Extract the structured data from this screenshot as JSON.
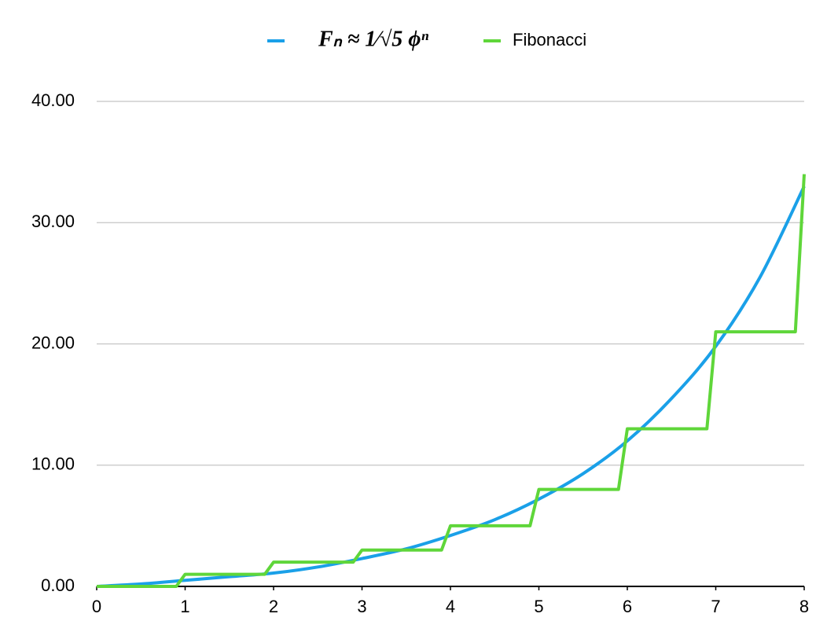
{
  "chart_data": {
    "type": "line",
    "series": [
      {
        "name": "Fₙ ≈ 1⁄√5 ϕⁿ",
        "color": "#1aa0e8",
        "x": [
          0,
          0.5,
          1,
          1.5,
          2,
          2.5,
          3,
          3.5,
          4,
          4.5,
          5,
          5.5,
          6,
          6.5,
          7,
          7.5,
          8
        ],
        "values": [
          0,
          0.2,
          0.5,
          0.8,
          1.1,
          1.6,
          2.3,
          3.1,
          4.2,
          5.5,
          7.2,
          9.3,
          12,
          15.5,
          19.8,
          25.5,
          33
        ]
      },
      {
        "name": "Fibonacci",
        "color": "#5fd63a",
        "x": [
          0,
          0.9,
          1,
          1.9,
          2,
          2.9,
          3,
          3.9,
          4,
          4.9,
          5,
          5.9,
          6,
          6.9,
          7,
          7.9,
          8
        ],
        "values": [
          0,
          0,
          1,
          1,
          2,
          2,
          3,
          3,
          5,
          5,
          8,
          8,
          13,
          13,
          21,
          21,
          34
        ]
      }
    ],
    "xlim": [
      0,
      8
    ],
    "xticks": [
      0,
      1,
      2,
      3,
      4,
      5,
      6,
      7,
      8
    ],
    "ylim": [
      0,
      40
    ],
    "yticks": [
      {
        "value": 0,
        "label": "0.00"
      },
      {
        "value": 10,
        "label": "10.00"
      },
      {
        "value": 20,
        "label": "20.00"
      },
      {
        "value": 30,
        "label": "30.00"
      },
      {
        "value": 40,
        "label": "40.00"
      }
    ],
    "grid": true,
    "legend": "top"
  }
}
